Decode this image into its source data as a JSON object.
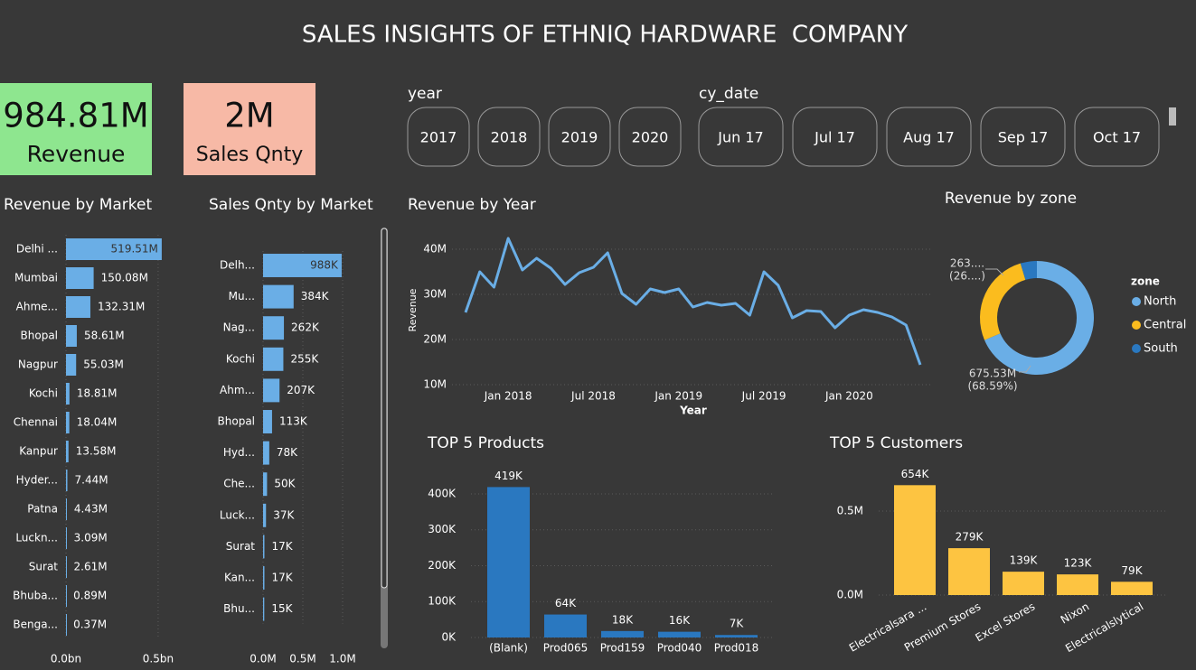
{
  "title": "SALES INSIGHTS OF ETHNIQ HARDWARE  COMPANY",
  "cards": [
    {
      "value": "984.81M",
      "label": "Revenue"
    },
    {
      "value": "2M",
      "label": "Sales Qnty"
    }
  ],
  "slicers": [
    {
      "label": "year",
      "options": [
        "2017",
        "2018",
        "2019",
        "2020"
      ]
    },
    {
      "label": "cy_date",
      "options": [
        "Jun 17",
        "Jul 17",
        "Aug 17",
        "Sep 17",
        "Oct 17"
      ]
    }
  ],
  "chart_data": [
    {
      "type": "hbar",
      "title": "Revenue by Market",
      "color": "#6aaee6",
      "categories": [
        "Delhi ...",
        "Mumbai",
        "Ahme...",
        "Bhopal",
        "Nagpur",
        "Kochi",
        "Chennai",
        "Kanpur",
        "Hyder...",
        "Patna",
        "Luckn...",
        "Surat",
        "Bhuba...",
        "Benga..."
      ],
      "values": [
        0.51951,
        0.15008,
        0.13231,
        0.05861,
        0.05503,
        0.01881,
        0.01804,
        0.01358,
        0.00744,
        0.00443,
        0.00309,
        0.00261,
        0.00089,
        0.00037
      ],
      "value_labels": [
        "519.51M",
        "150.08M",
        "132.31M",
        "58.61M",
        "55.03M",
        "18.81M",
        "18.04M",
        "13.58M",
        "7.44M",
        "4.43M",
        "3.09M",
        "2.61M",
        "0.89M",
        "0.37M"
      ],
      "xlim": [
        0,
        0.52
      ],
      "xticks": [
        {
          "value": 0,
          "label": "0.0bn"
        },
        {
          "value": 0.5,
          "label": "0.5bn"
        }
      ],
      "grid": true
    },
    {
      "type": "hbar",
      "title": "Sales Qnty by Market",
      "color": "#6aaee6",
      "categories": [
        "Delh...",
        "Mu...",
        "Nag...",
        "Kochi",
        "Ahm...",
        "Bhopal",
        "Hyd...",
        "Che...",
        "Luck...",
        "Surat",
        "Kan...",
        "Bhu..."
      ],
      "values": [
        0.988,
        0.384,
        0.262,
        0.255,
        0.207,
        0.113,
        0.078,
        0.05,
        0.037,
        0.017,
        0.017,
        0.015
      ],
      "value_labels": [
        "988K",
        "384K",
        "262K",
        "255K",
        "207K",
        "113K",
        "78K",
        "50K",
        "37K",
        "17K",
        "17K",
        "15K"
      ],
      "xlim": [
        0,
        1
      ],
      "xticks": [
        {
          "value": 0,
          "label": "0.0M"
        },
        {
          "value": 0.5,
          "label": "0.5M"
        },
        {
          "value": 1,
          "label": "1.0M"
        }
      ],
      "grid": true
    },
    {
      "type": "line",
      "title": "Revenue by Year",
      "color": "#6aaee6",
      "x_label": "Year",
      "y_label": "Revenue",
      "x": [
        "2017-10",
        "2017-11",
        "2017-12",
        "2018-01",
        "2018-02",
        "2018-03",
        "2018-04",
        "2018-05",
        "2018-06",
        "2018-07",
        "2018-08",
        "2018-09",
        "2018-10",
        "2018-11",
        "2018-12",
        "2019-01",
        "2019-02",
        "2019-03",
        "2019-04",
        "2019-05",
        "2019-06",
        "2019-07",
        "2019-08",
        "2019-09",
        "2019-10",
        "2019-11",
        "2019-12",
        "2020-01",
        "2020-02",
        "2020-03",
        "2020-04",
        "2020-05",
        "2020-06"
      ],
      "values": [
        26,
        35,
        31.6,
        42.4,
        35.4,
        38,
        35.8,
        32.2,
        34.8,
        36,
        39.2,
        30.2,
        27.8,
        31.2,
        30.4,
        31.2,
        27.2,
        28.2,
        27.6,
        28,
        25.4,
        35,
        32,
        24.8,
        26.4,
        26.2,
        22.6,
        25.4,
        26.6,
        26,
        25,
        23.2,
        14.4
      ],
      "xlim": [
        "2017-10",
        "2020-06"
      ],
      "xticks": [
        {
          "value": "2018-01",
          "label": "Jan 2018"
        },
        {
          "value": "2018-07",
          "label": "Jul 2018"
        },
        {
          "value": "2019-01",
          "label": "Jan 2019"
        },
        {
          "value": "2019-07",
          "label": "Jul 2019"
        },
        {
          "value": "2020-01",
          "label": "Jan 2020"
        }
      ],
      "ylim": [
        9,
        44
      ],
      "yticks": [
        {
          "value": 10,
          "label": "10M"
        },
        {
          "value": 20,
          "label": "20M"
        },
        {
          "value": 30,
          "label": "30M"
        },
        {
          "value": 40,
          "label": "40M"
        }
      ],
      "grid": true
    },
    {
      "type": "pie",
      "title": "Revenue by zone",
      "donut": true,
      "legend_title": "zone",
      "legend": "right",
      "series": [
        {
          "name": "North",
          "color": "#6aaee6",
          "values": [
            675.53
          ]
        },
        {
          "name": "Central",
          "color": "#fbbc1e",
          "values": [
            263.5
          ]
        },
        {
          "name": "South",
          "color": "#2a78c0",
          "values": [
            45.78
          ]
        }
      ],
      "value_labels": [
        "675.53M",
        "263....",
        null
      ],
      "percent_labels": [
        "(68.59%)",
        "(26....)",
        null
      ]
    },
    {
      "type": "bar",
      "title": "TOP 5 Products",
      "color": "#2a78c0",
      "categories": [
        "(Blank)",
        "Prod065",
        "Prod159",
        "Prod040",
        "Prod018"
      ],
      "values": [
        419,
        64,
        18,
        16,
        7
      ],
      "value_labels": [
        "419K",
        "64K",
        "18K",
        "16K",
        "7K"
      ],
      "ylim": [
        0,
        420
      ],
      "yticks": [
        {
          "value": 0,
          "label": "0K"
        },
        {
          "value": 100,
          "label": "100K"
        },
        {
          "value": 200,
          "label": "200K"
        },
        {
          "value": 300,
          "label": "300K"
        },
        {
          "value": 400,
          "label": "400K"
        }
      ],
      "grid": true
    },
    {
      "type": "bar",
      "title": "TOP 5 Customers",
      "color": "#fdc441",
      "categories": [
        "Electricalsara ...",
        "Premium Stores",
        "Excel Stores",
        "Nixon",
        "Electricalslytical"
      ],
      "values": [
        0.654,
        0.279,
        0.139,
        0.123,
        0.079
      ],
      "value_labels": [
        "654K",
        "279K",
        "139K",
        "123K",
        "79K"
      ],
      "ylim": [
        0,
        0.66
      ],
      "yticks": [
        {
          "value": 0,
          "label": "0.0M"
        },
        {
          "value": 0.5,
          "label": "0.5M"
        }
      ],
      "grid": true
    }
  ]
}
